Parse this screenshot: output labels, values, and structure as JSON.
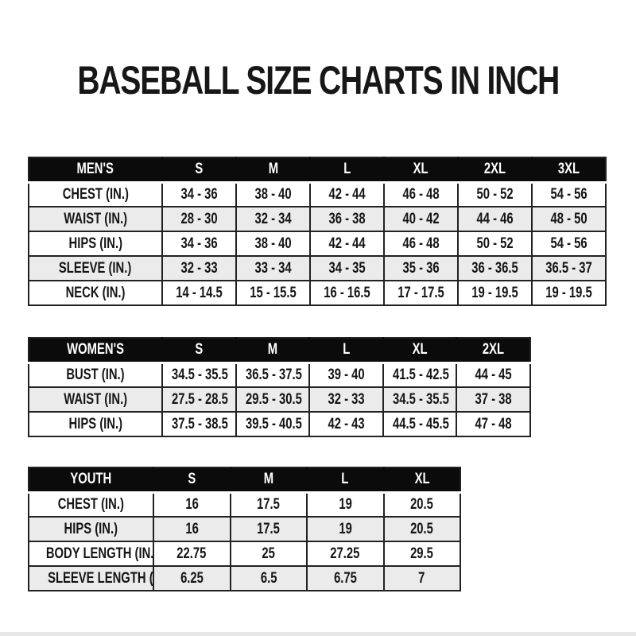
{
  "page": {
    "title": "BASEBALL SIZE CHARTS IN INCH"
  },
  "colors": {
    "header_bg": "#0b0b0b",
    "header_text": "#ffffff",
    "border": "#222222",
    "row_alt": "#ebebeb",
    "text": "#151515",
    "page_bg": "#ffffff"
  },
  "tables": [
    {
      "name": "mens-size-table",
      "header": [
        "MEN'S",
        "S",
        "M",
        "L",
        "XL",
        "2XL",
        "3XL"
      ],
      "rows": [
        [
          "CHEST (IN.)",
          "34 - 36",
          "38 - 40",
          "42 - 44",
          "46 - 48",
          "50 - 52",
          "54 - 56"
        ],
        [
          "WAIST (IN.)",
          "28 - 30",
          "32 - 34",
          "36 - 38",
          "40 - 42",
          "44 - 46",
          "48 - 50"
        ],
        [
          "HIPS (IN.)",
          "34 - 36",
          "38 - 40",
          "42 - 44",
          "46 - 48",
          "50 - 52",
          "54 - 56"
        ],
        [
          "SLEEVE (IN.)",
          "32 - 33",
          "33 - 34",
          "34 - 35",
          "35 - 36",
          "36 - 36.5",
          "36.5 - 37"
        ],
        [
          "NECK (IN.)",
          "14 - 14.5",
          "15 - 15.5",
          "16 - 16.5",
          "17 - 17.5",
          "19 - 19.5",
          "19 - 19.5"
        ]
      ]
    },
    {
      "name": "womens-size-table",
      "header": [
        "WOMEN'S",
        "S",
        "M",
        "L",
        "XL",
        "2XL"
      ],
      "rows": [
        [
          "BUST (IN.)",
          "34.5 - 35.5",
          "36.5 - 37.5",
          "39 - 40",
          "41.5 - 42.5",
          "44 - 45"
        ],
        [
          "WAIST (IN.)",
          "27.5 - 28.5",
          "29.5 - 30.5",
          "32 - 33",
          "34.5 - 35.5",
          "37 - 38"
        ],
        [
          "HIPS (IN.)",
          "37.5 - 38.5",
          "39.5 - 40.5",
          "42 - 43",
          "44.5 - 45.5",
          "47 - 48"
        ]
      ]
    },
    {
      "name": "youth-size-table",
      "header": [
        "YOUTH",
        "S",
        "M",
        "L",
        "XL"
      ],
      "rows": [
        [
          "CHEST (IN.)",
          "16",
          "17.5",
          "19",
          "20.5"
        ],
        [
          "HIPS (IN.)",
          "16",
          "17.5",
          "19",
          "20.5"
        ],
        [
          "BODY LENGTH (IN.)",
          "22.75",
          "25",
          "27.25",
          "29.5"
        ],
        [
          "SLEEVE LENGTH (IN.)",
          "6.25",
          "6.5",
          "6.75",
          "7"
        ]
      ]
    }
  ]
}
